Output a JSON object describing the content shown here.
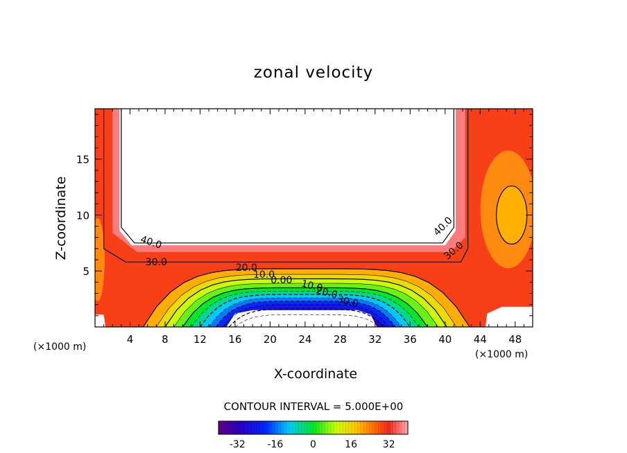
{
  "chart_data": {
    "type": "contour",
    "title": "zonal velocity",
    "xlabel": "X-coordinate",
    "ylabel": "Z-coordinate",
    "x_unit_left": "(×1000 m)",
    "x_unit_right": "(×1000 m)",
    "xlim": [
      0,
      50
    ],
    "ylim": [
      0,
      19.5
    ],
    "x_ticks": [
      4,
      8,
      12,
      16,
      20,
      24,
      28,
      32,
      36,
      40,
      44,
      48
    ],
    "y_ticks": [
      5,
      10,
      15
    ],
    "contour_interval_text": "CONTOUR INTERVAL = 5.000E+00",
    "contour_labels": [
      {
        "text": "40.0",
        "x": 6.3,
        "y": 7.3
      },
      {
        "text": "30.0",
        "x": 7.0,
        "y": 5.5
      },
      {
        "text": "20.0",
        "x": 17.3,
        "y": 5.0
      },
      {
        "text": "10.0",
        "x": 19.3,
        "y": 4.4
      },
      {
        "text": "0.00",
        "x": 21.3,
        "y": 3.9
      },
      {
        "text": "10.0",
        "x": 24.7,
        "y": 3.4
      },
      {
        "text": "20.0",
        "x": 26.4,
        "y": 2.8
      },
      {
        "text": "30.0",
        "x": 28.8,
        "y": 2.0
      },
      {
        "text": "40.0",
        "x": 40.0,
        "y": 8.8
      },
      {
        "text": "30.0",
        "x": 41.2,
        "y": 6.6
      }
    ],
    "colorbar": {
      "range": [
        -40,
        40
      ],
      "ticks": [
        "-32",
        "-16",
        "0",
        "16",
        "32"
      ],
      "tick_values": [
        -32,
        -16,
        0,
        16,
        32
      ]
    },
    "grid": false,
    "colormap": "rainbow (purple-blue-cyan-green-yellow-orange-red-pink)",
    "undefined_region_color": "#ffffff"
  }
}
